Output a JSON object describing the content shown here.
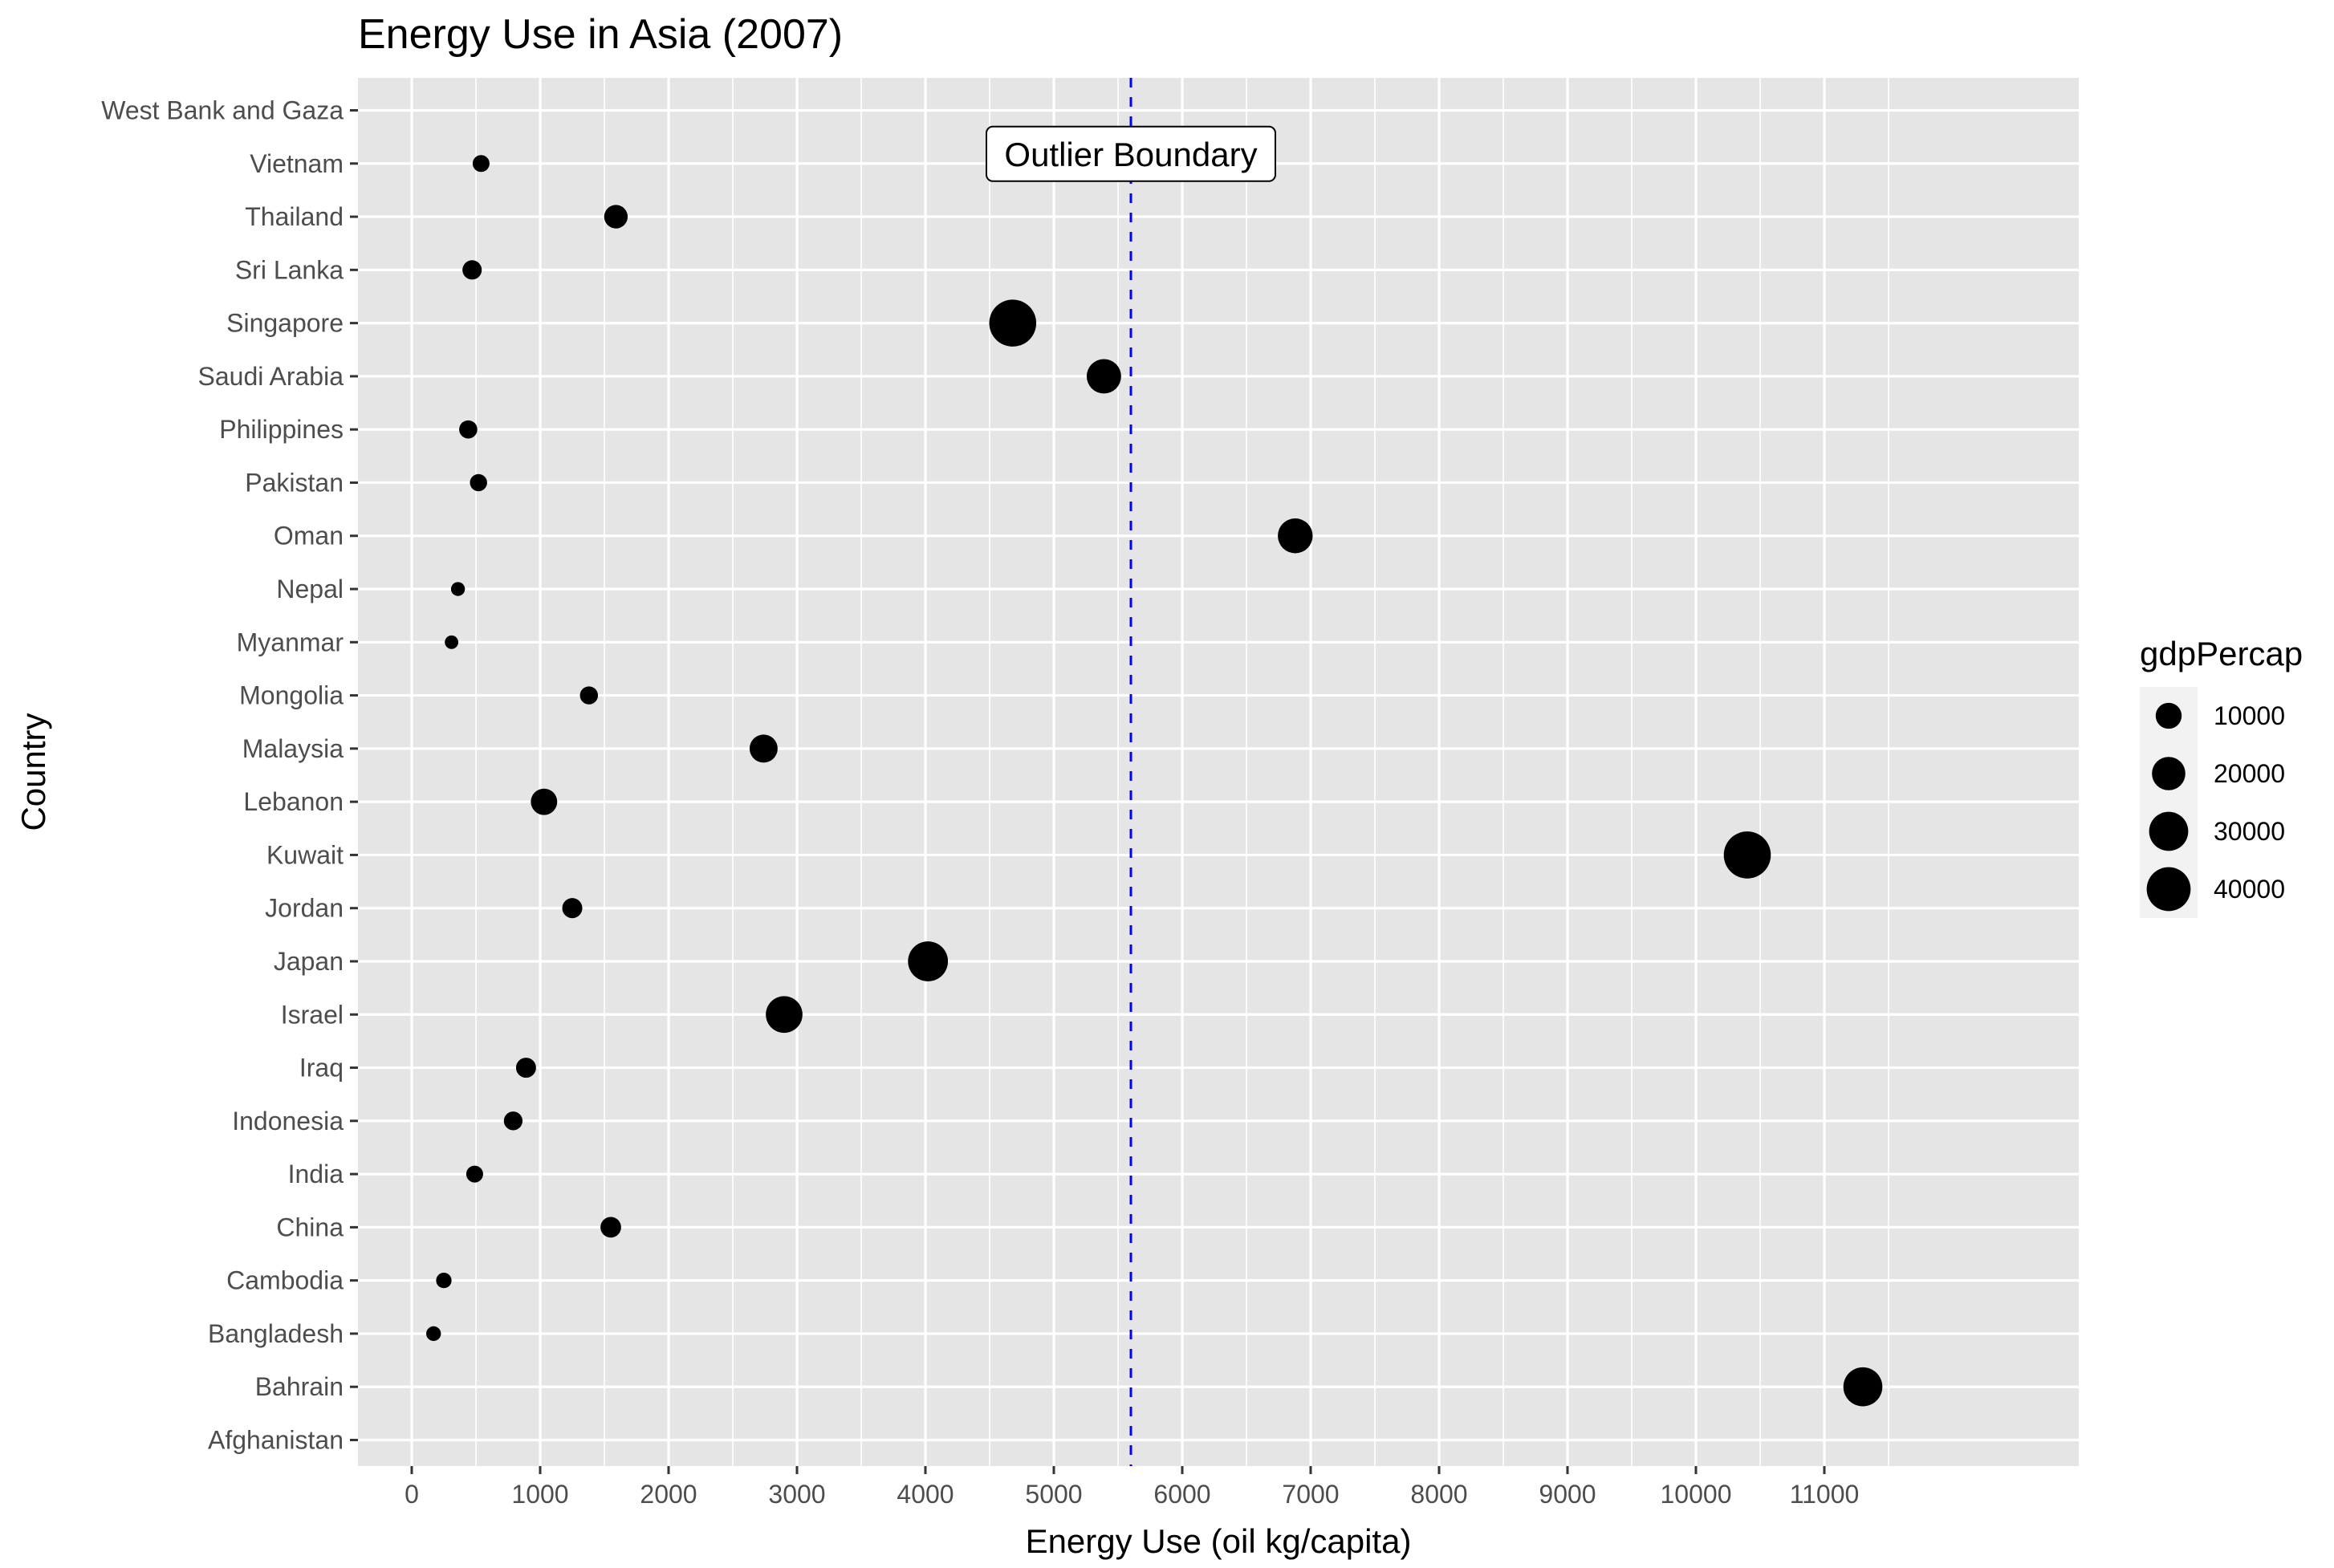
{
  "chart_data": {
    "type": "scatter",
    "title": "Energy Use in Asia (2007)",
    "xlabel": "Energy Use (oil kg/capita)",
    "ylabel": "Country",
    "xlim": [
      -350,
      11800
    ],
    "xticks": [
      0,
      1000,
      2000,
      3000,
      4000,
      5000,
      6000,
      7000,
      8000,
      9000,
      10000,
      11000
    ],
    "grid": true,
    "legend_position": "right",
    "categories": [
      "Afghanistan",
      "Bahrain",
      "Bangladesh",
      "Cambodia",
      "China",
      "India",
      "Indonesia",
      "Iraq",
      "Israel",
      "Japan",
      "Jordan",
      "Kuwait",
      "Lebanon",
      "Malaysia",
      "Mongolia",
      "Myanmar",
      "Nepal",
      "Oman",
      "Pakistan",
      "Philippines",
      "Saudi Arabia",
      "Singapore",
      "Sri Lanka",
      "Thailand",
      "Vietnam",
      "West Bank and Gaza"
    ],
    "points": [
      {
        "country": "Bahrain",
        "x": 11300,
        "size": 29800
      },
      {
        "country": "Bangladesh",
        "x": 170,
        "size": 1390
      },
      {
        "country": "Cambodia",
        "x": 250,
        "size": 1710
      },
      {
        "country": "China",
        "x": 1550,
        "size": 4960
      },
      {
        "country": "India",
        "x": 490,
        "size": 2450
      },
      {
        "country": "Indonesia",
        "x": 790,
        "size": 3540
      },
      {
        "country": "Iraq",
        "x": 890,
        "size": 4470
      },
      {
        "country": "Israel",
        "x": 2900,
        "size": 25500
      },
      {
        "country": "Japan",
        "x": 4020,
        "size": 31660
      },
      {
        "country": "Jordan",
        "x": 1250,
        "size": 4520
      },
      {
        "country": "Kuwait",
        "x": 10400,
        "size": 47300
      },
      {
        "country": "Lebanon",
        "x": 1030,
        "size": 10460
      },
      {
        "country": "Malaysia",
        "x": 2740,
        "size": 12450
      },
      {
        "country": "Mongolia",
        "x": 1380,
        "size": 3100
      },
      {
        "country": "Myanmar",
        "x": 310,
        "size": 940
      },
      {
        "country": "Nepal",
        "x": 360,
        "size": 1090
      },
      {
        "country": "Oman",
        "x": 6880,
        "size": 22320
      },
      {
        "country": "Pakistan",
        "x": 520,
        "size": 2610
      },
      {
        "country": "Philippines",
        "x": 440,
        "size": 3190
      },
      {
        "country": "Saudi Arabia",
        "x": 5390,
        "size": 21650
      },
      {
        "country": "Singapore",
        "x": 4680,
        "size": 47140
      },
      {
        "country": "Sri Lanka",
        "x": 470,
        "size": 3970
      },
      {
        "country": "Thailand",
        "x": 1590,
        "size": 7460
      },
      {
        "country": "Vietnam",
        "x": 540,
        "size": 2440
      }
    ],
    "reference_line": {
      "x": 5600,
      "color": "#0000ff",
      "style": "dashed",
      "label": "Outlier Boundary",
      "label_country": "Vietnam"
    },
    "size_legend": {
      "title": "gdpPercap",
      "entries": [
        {
          "value": 10000,
          "label": "10000"
        },
        {
          "value": 20000,
          "label": "20000"
        },
        {
          "value": 30000,
          "label": "30000"
        },
        {
          "value": 40000,
          "label": "40000"
        }
      ]
    },
    "colors": {
      "panel": "#e5e5e5",
      "grid": "#ffffff",
      "point": "#000000",
      "tick_text": "#4d4d4d",
      "tick_mark": "#333333"
    }
  }
}
